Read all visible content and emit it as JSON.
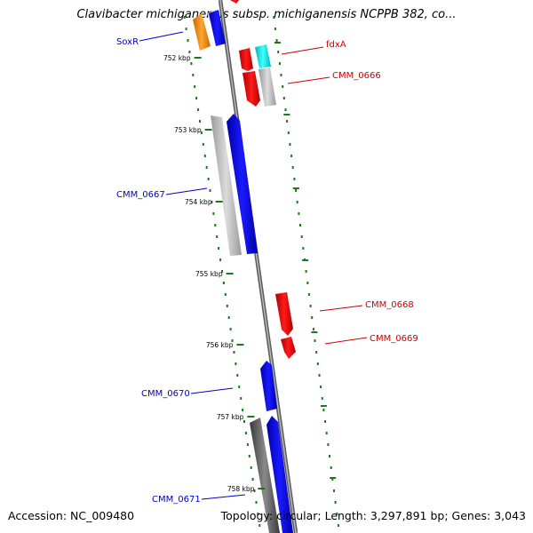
{
  "title": "Clavibacter michiganensis subsp. michiganensis NCPPB 382, co...",
  "footer": {
    "accession": "Accession: NC_009480",
    "summary": "Topology: circular; Length: 3,297,891 bp; Genes: 3,043"
  },
  "colors": {
    "forward_label": "#0000cc",
    "reverse_label": "#cc0000",
    "backbone": "#7f7f7f",
    "tick": "#1a7a1a"
  },
  "tick_labels": [
    "752 kbp",
    "753 kbp",
    "754 kbp",
    "755 kbp",
    "756 kbp",
    "757 kbp",
    "758 kbp"
  ],
  "gene_labels": {
    "forward": [
      "SoxR",
      "CMM_0667",
      "CMM_0670",
      "CMM_0671"
    ],
    "reverse": [
      "fdxA",
      "CMM_0666",
      "CMM_0668",
      "CMM_0669"
    ]
  }
}
